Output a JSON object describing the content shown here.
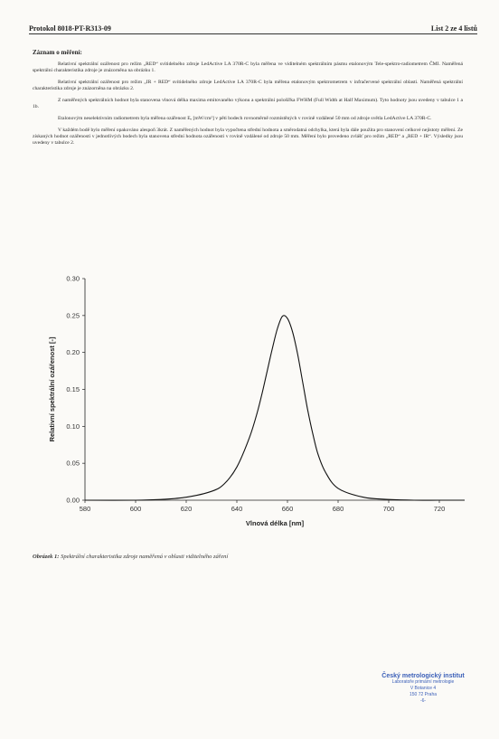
{
  "header": {
    "protocol": "Protokol 8018-PT-R313-09",
    "page": "List 2 ze 4 listů"
  },
  "section_title": "Záznam o měření:",
  "paragraphs": [
    "Relativní spektrální ozářenost pro režim „RED“ svítidelného zdroje LedActive LA 370R-C byla měřena ve viditelném spektrálním pásmu etalonovým Tele-spektro-radiometrem ČMI. Naměřená spektrální charakteristika zdroje je znázorněna na obrázku 1.",
    "Relativní spektrální ozářenost pro režim „IR + RED“ svítidelného zdroje LedActive LA 370R-C byla měřena etalonovým spektrometrem v infračervené spektrální oblasti. Naměřená spektrální charakteristika zdroje je znázorněna na obrázku 2.",
    "Z naměřených spektrálních hodnot byla stanovena vlnová délka maxima emitovaného výkonu a spektrální pološířka FWHM (Full Width at Half Maximum). Tyto hodnoty jsou uvedeny v tabulce 1 a 1b.",
    "Etalonovým neselektivním radiometrem byla měřena ozářenost Eₑ [mW/cm²] v pěti bodech rovnoměrně rozmístěných v rovině vzdálené 50 mm od zdroje světla LedActive LA 370R-C.",
    "V každém bodě bylo měření opakováno alespoň 3krát. Z naměřených hodnot byla vypočtena střední hodnota a směrodatná odchylka, která byla dále použita pro stanovení celkové nejistoty měření. Ze získaných hodnot ozářenosti v jednotlivých bodech byla stanovena střední hodnota ozářenosti v rovině vzdálené od zdroje 50 mm. Měření bylo provedeno zvlášť pro režim „RED“ a „RED + IR“. Výsledky jsou uvedeny v tabulce 2."
  ],
  "chart_data": {
    "type": "line",
    "xlabel": "Vlnová délka [nm]",
    "ylabel": "Relativní spektrální ozářenost [-]",
    "xlim": [
      580,
      730
    ],
    "ylim": [
      0.0,
      0.3
    ],
    "xticks": [
      "580",
      "600",
      "620",
      "640",
      "660",
      "680",
      "700",
      "720"
    ],
    "yticks": [
      "0.00",
      "0.05",
      "0.10",
      "0.15",
      "0.20",
      "0.25",
      "0.30"
    ],
    "grid": false,
    "series": [
      {
        "x": [
          580,
          600,
          610,
          620,
          630,
          635,
          640,
          645,
          648,
          650,
          652,
          654,
          656,
          658,
          660,
          662,
          664,
          666,
          668,
          670,
          672,
          675,
          680,
          690,
          700,
          710,
          720,
          730
        ],
        "y": [
          0.0,
          0.0,
          0.001,
          0.004,
          0.012,
          0.022,
          0.045,
          0.085,
          0.118,
          0.145,
          0.175,
          0.205,
          0.232,
          0.249,
          0.246,
          0.228,
          0.198,
          0.16,
          0.122,
          0.09,
          0.063,
          0.038,
          0.016,
          0.004,
          0.001,
          0.0,
          0.0,
          0.0
        ]
      }
    ]
  },
  "caption": {
    "label": "Obrázek 1:",
    "text": "Spektrální charakteristika zdroje naměřená v oblasti viditelného záření"
  },
  "stamp": {
    "title": "Český metrologický institut",
    "lines": [
      "Laboratoře primární metrologie",
      "V Botanice 4",
      "150 72 Praha",
      "-6-"
    ]
  },
  "colors": {
    "curve": "#111111",
    "stamp": "#3b5fb8"
  }
}
